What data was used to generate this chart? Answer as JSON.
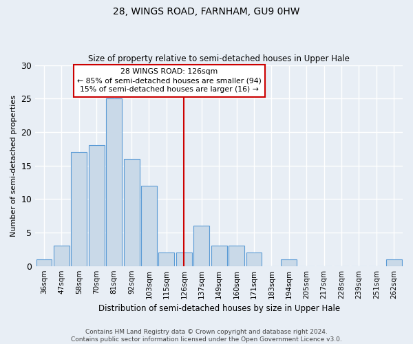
{
  "title1": "28, WINGS ROAD, FARNHAM, GU9 0HW",
  "title2": "Size of property relative to semi-detached houses in Upper Hale",
  "xlabel": "Distribution of semi-detached houses by size in Upper Hale",
  "ylabel": "Number of semi-detached properties",
  "categories": [
    "36sqm",
    "47sqm",
    "58sqm",
    "70sqm",
    "81sqm",
    "92sqm",
    "103sqm",
    "115sqm",
    "126sqm",
    "137sqm",
    "149sqm",
    "160sqm",
    "171sqm",
    "183sqm",
    "194sqm",
    "205sqm",
    "217sqm",
    "228sqm",
    "239sqm",
    "251sqm",
    "262sqm"
  ],
  "values": [
    1,
    3,
    17,
    18,
    25,
    16,
    12,
    2,
    2,
    6,
    3,
    3,
    2,
    0,
    1,
    0,
    0,
    0,
    0,
    0,
    1
  ],
  "bar_color": "#c9d9e8",
  "bar_edge_color": "#5b9bd5",
  "vline_x": 8,
  "vline_color": "#cc0000",
  "box_text": "28 WINGS ROAD: 126sqm\n← 85% of semi-detached houses are smaller (94)\n15% of semi-detached houses are larger (16) →",
  "box_color": "#cc0000",
  "ylim": [
    0,
    30
  ],
  "yticks": [
    0,
    5,
    10,
    15,
    20,
    25,
    30
  ],
  "bg_color": "#e8eef5",
  "footer_line1": "Contains HM Land Registry data © Crown copyright and database right 2024.",
  "footer_line2": "Contains public sector information licensed under the Open Government Licence v3.0."
}
